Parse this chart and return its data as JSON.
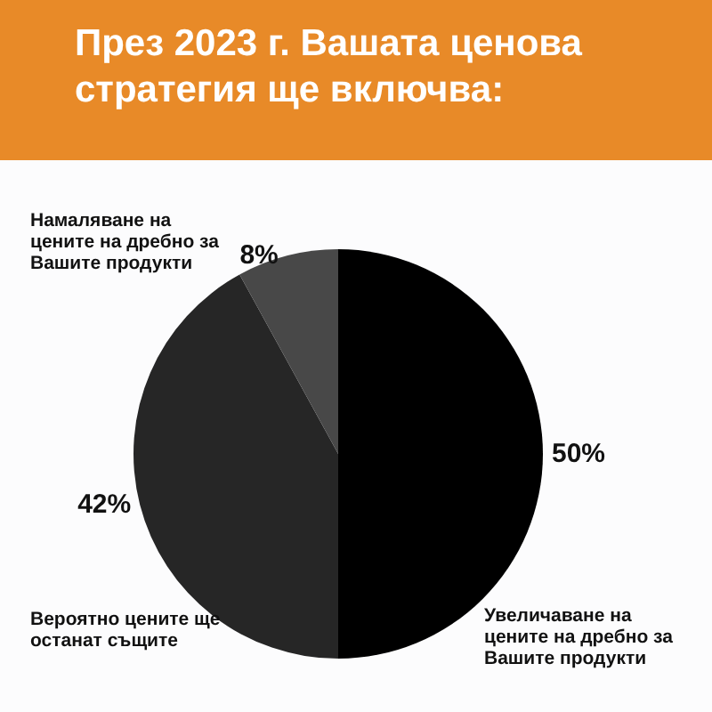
{
  "chart_data": {
    "type": "pie",
    "title": "През 2023 г. Вашата ценова стратегия ще включва:",
    "categories": [
      "Увеличаване на цените на дребно за Вашите продукти",
      "Вероятно цените ще останат същите",
      "Намаляване на цените на дребно за Вашите продукти"
    ],
    "values": [
      50,
      42,
      8
    ],
    "colors": [
      "#000000",
      "#262626",
      "#484848"
    ],
    "value_labels": [
      "50%",
      "42%",
      "8%"
    ]
  }
}
